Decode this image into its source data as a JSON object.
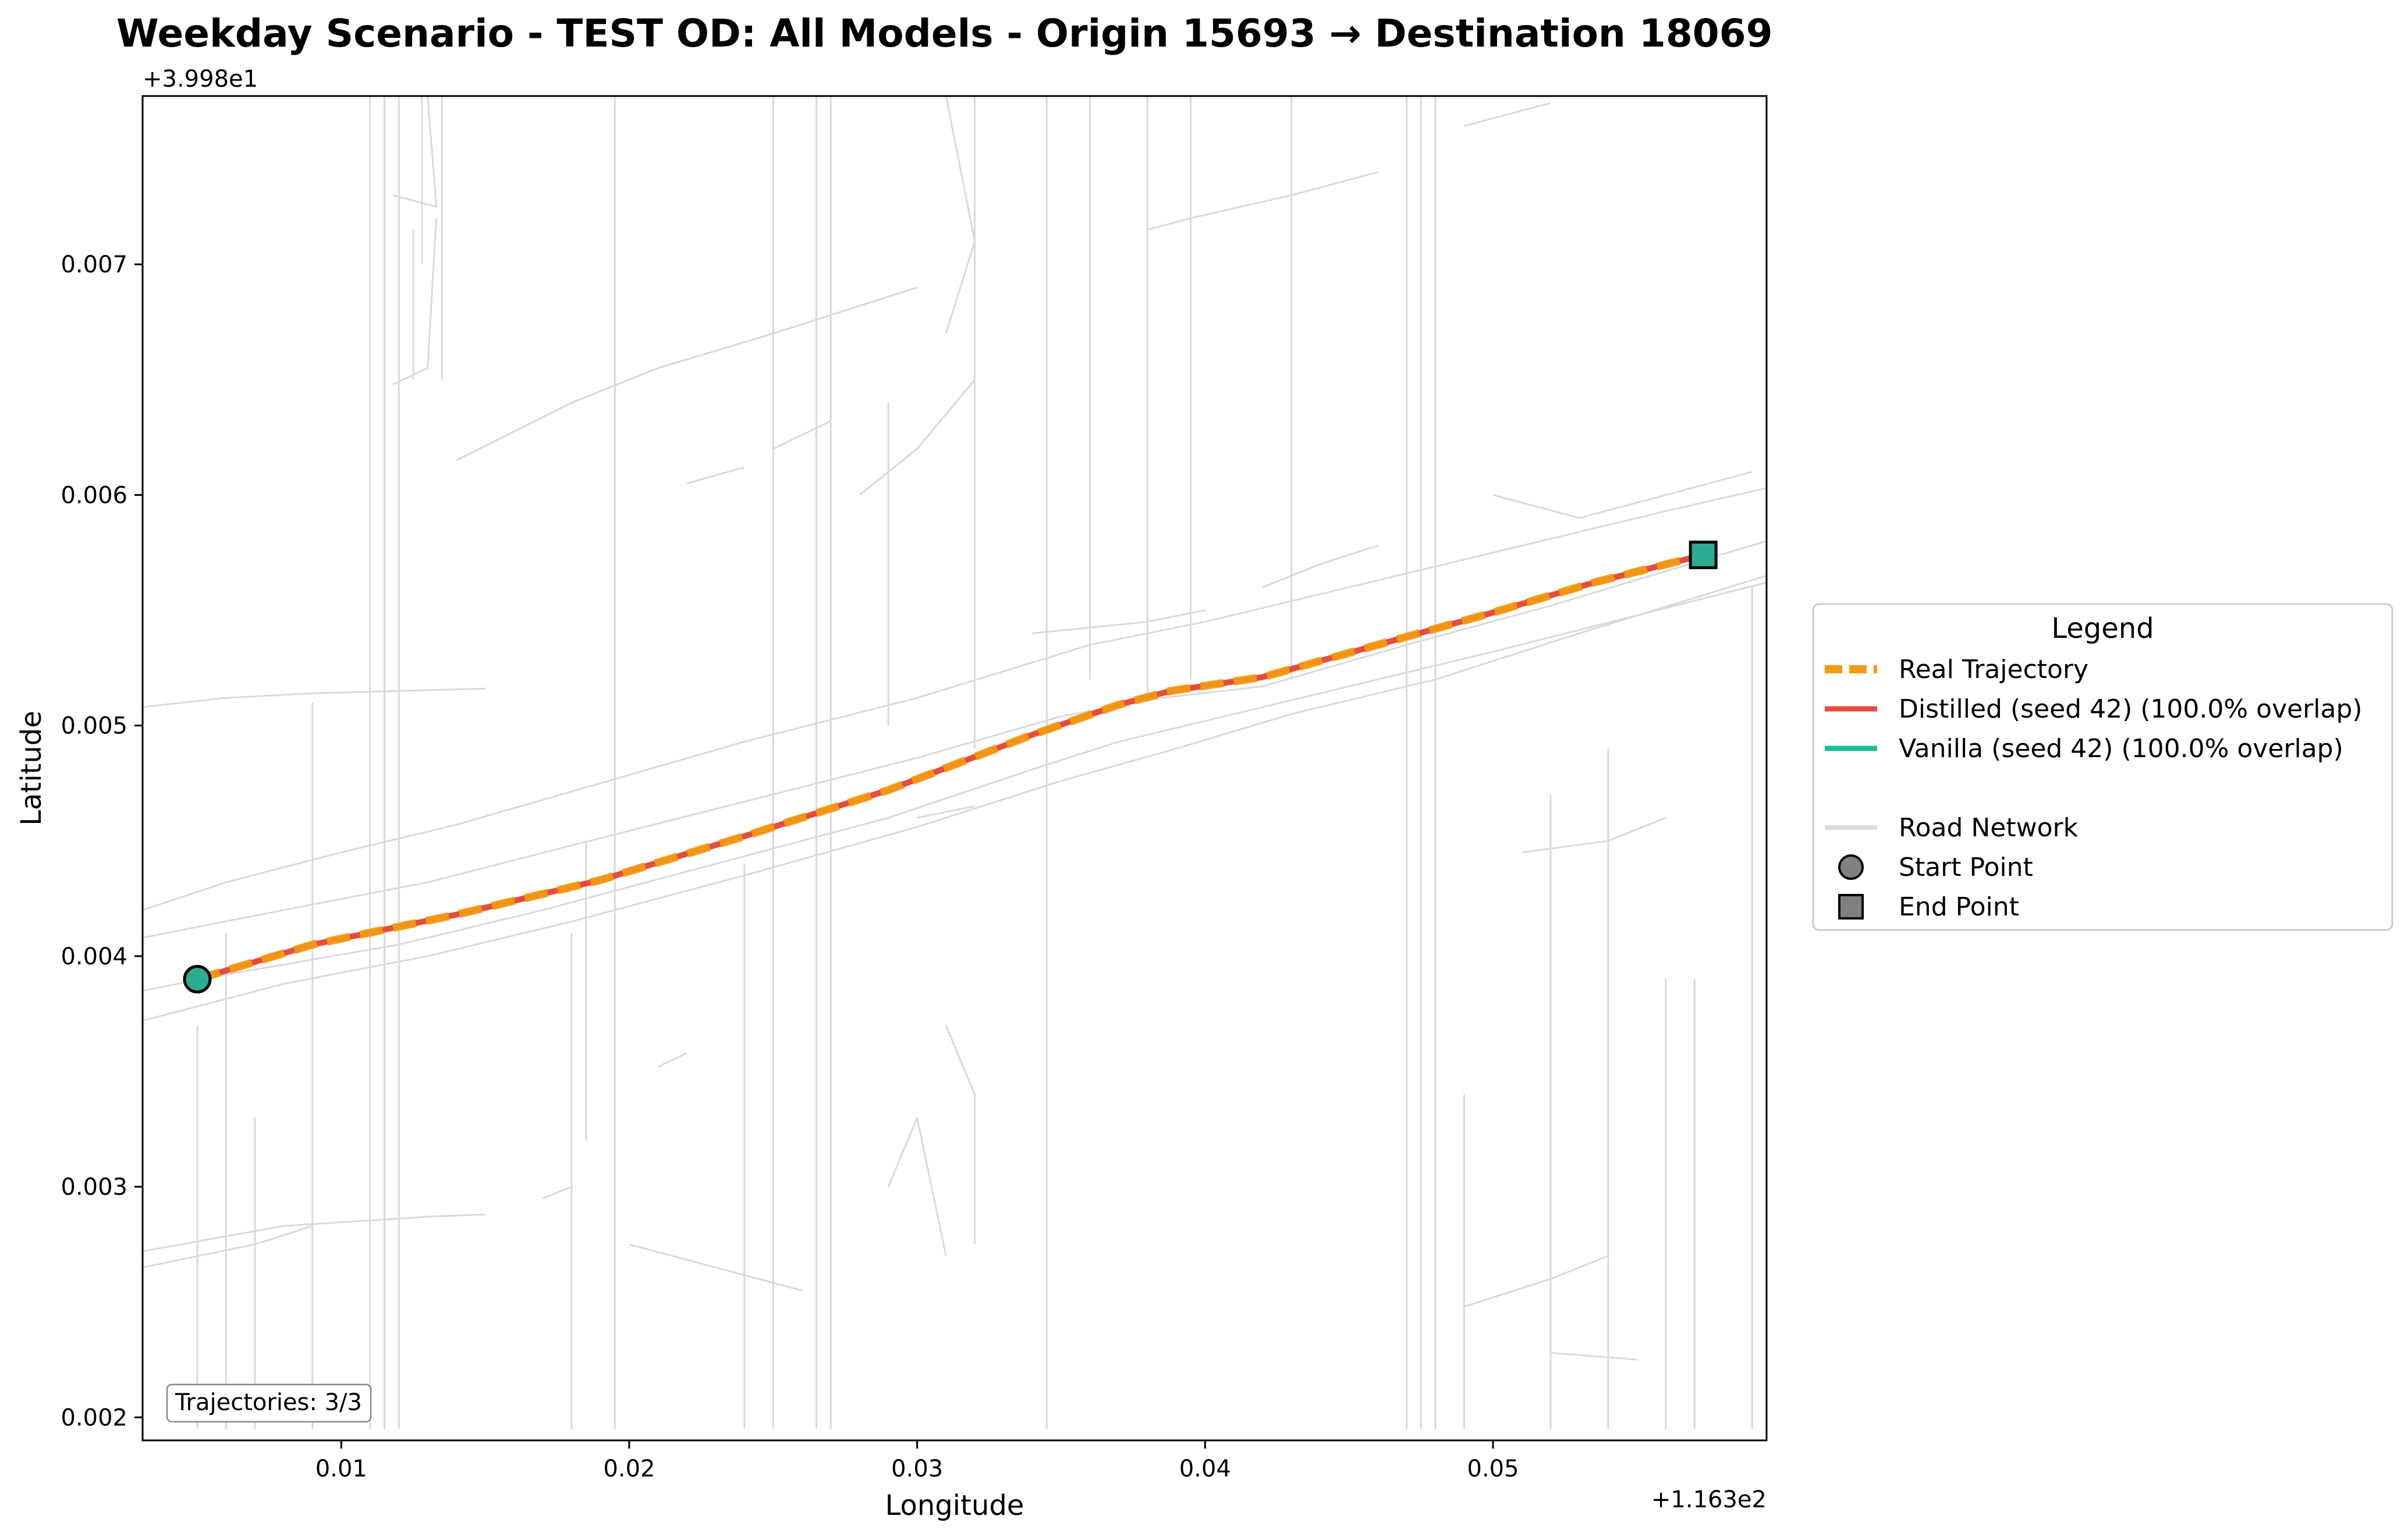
{
  "chart_data": {
    "type": "line",
    "title": "Weekday Scenario - TEST OD: All Models - Origin 15693 → Destination 18069",
    "xlabel": "Longitude",
    "ylabel": "Latitude",
    "x_offset_label": "+1.163e2",
    "y_offset_label": "+3.998e1",
    "x_offset": 116.3,
    "y_offset": 39.98,
    "xlim": [
      0.0031,
      0.0595
    ],
    "ylim": [
      0.0019,
      0.00773
    ],
    "x_ticks": [
      0.01,
      0.02,
      0.03,
      0.04,
      0.05
    ],
    "x_tick_labels": [
      "0.01",
      "0.02",
      "0.03",
      "0.04",
      "0.05"
    ],
    "y_ticks": [
      0.002,
      0.003,
      0.004,
      0.005,
      0.006,
      0.007
    ],
    "y_tick_labels": [
      "0.002",
      "0.003",
      "0.004",
      "0.005",
      "0.006",
      "0.007"
    ],
    "grid": false,
    "legend_placement": "outside right",
    "legend_title": "Legend",
    "series": [
      {
        "name": "Real Trajectory",
        "color": "#f39c12",
        "style": "dashed",
        "x": [
          0.005,
          0.009,
          0.014,
          0.019,
          0.024,
          0.029,
          0.034,
          0.037,
          0.0388,
          0.042,
          0.046,
          0.05,
          0.0535,
          0.0573
        ],
        "y": [
          0.0039,
          0.00405,
          0.00418,
          0.00433,
          0.00452,
          0.00472,
          0.00496,
          0.00509,
          0.00515,
          0.00521,
          0.00535,
          0.00549,
          0.00562,
          0.00574
        ]
      },
      {
        "name": "Distilled (seed 42) (100.0% overlap)",
        "color": "#e74c3c",
        "style": "solid",
        "x": [
          0.005,
          0.009,
          0.014,
          0.019,
          0.024,
          0.029,
          0.034,
          0.037,
          0.0388,
          0.042,
          0.046,
          0.05,
          0.0535,
          0.0573
        ],
        "y": [
          0.0039,
          0.00405,
          0.00418,
          0.00433,
          0.00452,
          0.00472,
          0.00496,
          0.00509,
          0.00515,
          0.00521,
          0.00535,
          0.00549,
          0.00562,
          0.00574
        ]
      },
      {
        "name": "Vanilla (seed 42) (100.0% overlap)",
        "color": "#1abc9c",
        "style": "solid",
        "x": [
          0.005,
          0.009,
          0.014,
          0.019,
          0.024,
          0.029,
          0.034,
          0.037,
          0.0388,
          0.042,
          0.046,
          0.05,
          0.0535,
          0.0573
        ],
        "y": [
          0.0039,
          0.00405,
          0.00418,
          0.00433,
          0.00452,
          0.00472,
          0.00496,
          0.00509,
          0.00515,
          0.00521,
          0.00535,
          0.00549,
          0.00562,
          0.00574
        ]
      }
    ],
    "legend_extra": [
      {
        "name": "Road Network",
        "color": "#dddddd",
        "marker": "line"
      },
      {
        "name": "Start Point",
        "color": "#808080",
        "marker": "circle"
      },
      {
        "name": "End Point",
        "color": "#808080",
        "marker": "square"
      }
    ],
    "start_point": {
      "x": 0.005,
      "y": 0.0039,
      "color": "#2bab8f"
    },
    "end_point": {
      "x": 0.0573,
      "y": 0.00574,
      "color": "#2bab8f"
    },
    "road_color": "#d9d9d9",
    "road_network": [
      [
        [
          0.0031,
          0.0042
        ],
        [
          0.006,
          0.00432
        ],
        [
          0.01,
          0.00445
        ],
        [
          0.014,
          0.00457
        ],
        [
          0.019,
          0.00475
        ],
        [
          0.024,
          0.00493
        ],
        [
          0.03,
          0.00512
        ],
        [
          0.036,
          0.00535
        ],
        [
          0.04,
          0.00545
        ],
        [
          0.045,
          0.0056
        ],
        [
          0.05,
          0.00575
        ],
        [
          0.056,
          0.00593
        ],
        [
          0.0595,
          0.00603
        ]
      ],
      [
        [
          0.0031,
          0.00408
        ],
        [
          0.008,
          0.0042
        ],
        [
          0.013,
          0.00432
        ],
        [
          0.018,
          0.00448
        ],
        [
          0.024,
          0.00467
        ],
        [
          0.03,
          0.00486
        ],
        [
          0.035,
          0.00504
        ],
        [
          0.0385,
          0.00512
        ],
        [
          0.042,
          0.00517
        ],
        [
          0.047,
          0.00535
        ],
        [
          0.052,
          0.00552
        ],
        [
          0.0595,
          0.0058
        ]
      ],
      [
        [
          0.0031,
          0.00372
        ],
        [
          0.008,
          0.00388
        ],
        [
          0.013,
          0.004
        ],
        [
          0.018,
          0.00415
        ],
        [
          0.024,
          0.00435
        ],
        [
          0.03,
          0.00456
        ],
        [
          0.035,
          0.00476
        ],
        [
          0.039,
          0.0049
        ],
        [
          0.043,
          0.00505
        ],
        [
          0.048,
          0.0052
        ],
        [
          0.053,
          0.0054
        ],
        [
          0.0595,
          0.00565
        ]
      ],
      [
        [
          0.0031,
          0.00385
        ],
        [
          0.006,
          0.00392
        ],
        [
          0.012,
          0.00405
        ],
        [
          0.017,
          0.0042
        ],
        [
          0.023,
          0.0044
        ],
        [
          0.029,
          0.0046
        ],
        [
          0.034,
          0.00481
        ],
        [
          0.037,
          0.00493
        ],
        [
          0.04,
          0.00502
        ],
        [
          0.045,
          0.00517
        ],
        [
          0.05,
          0.00532
        ],
        [
          0.0595,
          0.00562
        ]
      ],
      [
        [
          0.0031,
          0.00508
        ],
        [
          0.006,
          0.00512
        ],
        [
          0.009,
          0.00514
        ],
        [
          0.015,
          0.00516
        ]
      ],
      [
        [
          0.0031,
          0.00272
        ],
        [
          0.008,
          0.00283
        ],
        [
          0.013,
          0.00287
        ],
        [
          0.015,
          0.00288
        ]
      ],
      [
        [
          0.0031,
          0.00265
        ],
        [
          0.007,
          0.00275
        ],
        [
          0.009,
          0.00283
        ]
      ],
      [
        [
          0.006,
          0.00195
        ],
        [
          0.006,
          0.0041
        ]
      ],
      [
        [
          0.007,
          0.00195
        ],
        [
          0.007,
          0.0033
        ]
      ],
      [
        [
          0.005,
          0.00195
        ],
        [
          0.005,
          0.0037
        ]
      ],
      [
        [
          0.009,
          0.00195
        ],
        [
          0.009,
          0.0051
        ]
      ],
      [
        [
          0.011,
          0.00195
        ],
        [
          0.011,
          0.00773
        ]
      ],
      [
        [
          0.0115,
          0.00195
        ],
        [
          0.0115,
          0.00773
        ]
      ],
      [
        [
          0.012,
          0.00195
        ],
        [
          0.012,
          0.00773
        ]
      ],
      [
        [
          0.0118,
          0.00648
        ],
        [
          0.013,
          0.00655
        ],
        [
          0.0133,
          0.0072
        ]
      ],
      [
        [
          0.0118,
          0.0073
        ],
        [
          0.0133,
          0.00725
        ],
        [
          0.013,
          0.00773
        ]
      ],
      [
        [
          0.0125,
          0.0065
        ],
        [
          0.0125,
          0.00715
        ]
      ],
      [
        [
          0.0128,
          0.00773
        ],
        [
          0.0128,
          0.007
        ]
      ],
      [
        [
          0.0135,
          0.0065
        ],
        [
          0.0135,
          0.00773
        ]
      ],
      [
        [
          0.018,
          0.00195
        ],
        [
          0.018,
          0.0041
        ]
      ],
      [
        [
          0.0185,
          0.0032
        ],
        [
          0.0185,
          0.0045
        ]
      ],
      [
        [
          0.0195,
          0.00195
        ],
        [
          0.0195,
          0.00773
        ]
      ],
      [
        [
          0.024,
          0.00195
        ],
        [
          0.024,
          0.0044
        ]
      ],
      [
        [
          0.025,
          0.00195
        ],
        [
          0.025,
          0.00773
        ]
      ],
      [
        [
          0.0265,
          0.00195
        ],
        [
          0.0265,
          0.00773
        ]
      ],
      [
        [
          0.027,
          0.00195
        ],
        [
          0.027,
          0.00773
        ]
      ],
      [
        [
          0.029,
          0.005
        ],
        [
          0.029,
          0.0064
        ]
      ],
      [
        [
          0.032,
          0.0049
        ],
        [
          0.032,
          0.00773
        ]
      ],
      [
        [
          0.0345,
          0.00195
        ],
        [
          0.0345,
          0.00773
        ]
      ],
      [
        [
          0.036,
          0.0052
        ],
        [
          0.036,
          0.00773
        ]
      ],
      [
        [
          0.038,
          0.0051
        ],
        [
          0.038,
          0.00773
        ]
      ],
      [
        [
          0.0395,
          0.0052
        ],
        [
          0.0395,
          0.00773
        ]
      ],
      [
        [
          0.043,
          0.0052
        ],
        [
          0.043,
          0.00773
        ]
      ],
      [
        [
          0.047,
          0.00195
        ],
        [
          0.047,
          0.00773
        ]
      ],
      [
        [
          0.0475,
          0.00195
        ],
        [
          0.0475,
          0.00773
        ]
      ],
      [
        [
          0.048,
          0.00195
        ],
        [
          0.048,
          0.00773
        ]
      ],
      [
        [
          0.049,
          0.00195
        ],
        [
          0.049,
          0.0034
        ]
      ],
      [
        [
          0.052,
          0.00195
        ],
        [
          0.052,
          0.0047
        ]
      ],
      [
        [
          0.054,
          0.00195
        ],
        [
          0.054,
          0.0049
        ]
      ],
      [
        [
          0.056,
          0.00195
        ],
        [
          0.056,
          0.0039
        ]
      ],
      [
        [
          0.057,
          0.00195
        ],
        [
          0.057,
          0.0039
        ]
      ],
      [
        [
          0.059,
          0.00195
        ],
        [
          0.059,
          0.0056
        ]
      ],
      [
        [
          0.014,
          0.00615
        ],
        [
          0.018,
          0.0064
        ],
        [
          0.021,
          0.00655
        ],
        [
          0.025,
          0.0067
        ],
        [
          0.03,
          0.0069
        ]
      ],
      [
        [
          0.022,
          0.00605
        ],
        [
          0.024,
          0.00612
        ]
      ],
      [
        [
          0.025,
          0.0062
        ],
        [
          0.027,
          0.00632
        ]
      ],
      [
        [
          0.028,
          0.006
        ],
        [
          0.03,
          0.0062
        ],
        [
          0.032,
          0.0065
        ]
      ],
      [
        [
          0.031,
          0.0067
        ],
        [
          0.032,
          0.0071
        ],
        [
          0.031,
          0.00773
        ]
      ],
      [
        [
          0.038,
          0.00715
        ],
        [
          0.0395,
          0.0072
        ],
        [
          0.043,
          0.0073
        ],
        [
          0.046,
          0.0074
        ]
      ],
      [
        [
          0.049,
          0.0076
        ],
        [
          0.052,
          0.0077
        ]
      ],
      [
        [
          0.034,
          0.0054
        ],
        [
          0.038,
          0.00545
        ],
        [
          0.04,
          0.0055
        ]
      ],
      [
        [
          0.042,
          0.0056
        ],
        [
          0.044,
          0.0057
        ],
        [
          0.046,
          0.00578
        ]
      ],
      [
        [
          0.05,
          0.006
        ],
        [
          0.053,
          0.0059
        ],
        [
          0.056,
          0.006
        ],
        [
          0.059,
          0.0061
        ]
      ],
      [
        [
          0.051,
          0.00445
        ],
        [
          0.054,
          0.0045
        ],
        [
          0.056,
          0.0046
        ]
      ],
      [
        [
          0.049,
          0.00248
        ],
        [
          0.052,
          0.0026
        ],
        [
          0.054,
          0.0027
        ]
      ],
      [
        [
          0.052,
          0.00228
        ],
        [
          0.055,
          0.00225
        ]
      ],
      [
        [
          0.02,
          0.00275
        ],
        [
          0.023,
          0.00265
        ],
        [
          0.026,
          0.00255
        ]
      ],
      [
        [
          0.029,
          0.003
        ],
        [
          0.03,
          0.0033
        ]
      ],
      [
        [
          0.03,
          0.0033
        ],
        [
          0.031,
          0.0027
        ]
      ],
      [
        [
          0.031,
          0.0037
        ],
        [
          0.032,
          0.0034
        ],
        [
          0.032,
          0.00275
        ]
      ],
      [
        [
          0.03,
          0.0046
        ],
        [
          0.032,
          0.00465
        ]
      ],
      [
        [
          0.017,
          0.00295
        ],
        [
          0.018,
          0.003
        ]
      ],
      [
        [
          0.021,
          0.00352
        ],
        [
          0.022,
          0.00358
        ]
      ]
    ],
    "annotation": "Trajectories: 3/3"
  }
}
